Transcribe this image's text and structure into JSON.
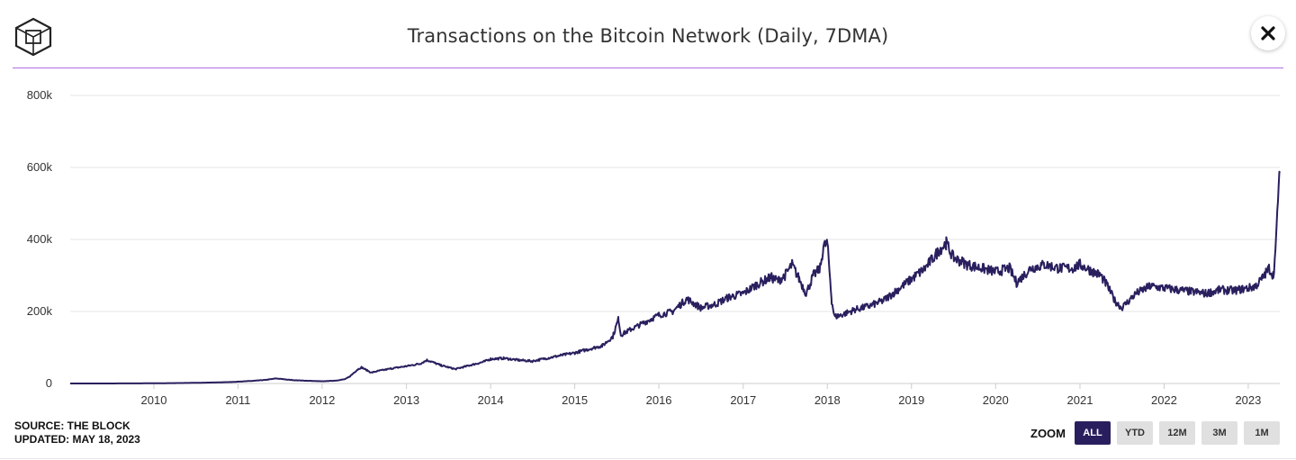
{
  "header": {
    "title": "Transactions on the Bitcoin Network (Daily, 7DMA)",
    "logo_icon": "cube-logo-icon",
    "close_icon": "close-icon"
  },
  "footer": {
    "source": "SOURCE: THE BLOCK",
    "updated": "UPDATED: MAY 18, 2023"
  },
  "zoom": {
    "label": "ZOOM",
    "buttons": [
      {
        "label": "ALL",
        "active": true
      },
      {
        "label": "YTD",
        "active": false
      },
      {
        "label": "12M",
        "active": false
      },
      {
        "label": "3M",
        "active": false
      },
      {
        "label": "1M",
        "active": false
      }
    ]
  },
  "colors": {
    "line": "#2a1f5e",
    "accent_rule": "#b36fe0",
    "grid": "#e6e6e6",
    "active_button": "#2a1f5e"
  },
  "chart_data": {
    "type": "line",
    "title": "Transactions on the Bitcoin Network (Daily, 7DMA)",
    "xlabel": "",
    "ylabel": "",
    "x_tick_labels": [
      "2010",
      "2011",
      "2012",
      "2013",
      "2014",
      "2015",
      "2016",
      "2017",
      "2018",
      "2019",
      "2020",
      "2021",
      "2022",
      "2023"
    ],
    "y_tick_values": [
      0,
      200000,
      400000,
      600000,
      800000
    ],
    "y_tick_labels": [
      "0",
      "200k",
      "400k",
      "600k",
      "800k"
    ],
    "ylim": [
      0,
      800000
    ],
    "xlim": [
      "2009-01-03",
      "2023-05-18"
    ],
    "grid": true,
    "legend": "none",
    "series": [
      {
        "x": [
          "2009-01-03",
          "2009-06-01",
          "2010-01-01",
          "2010-06-01",
          "2010-09-01",
          "2010-12-01",
          "2011-01-01",
          "2011-03-01",
          "2011-05-01",
          "2011-06-15",
          "2011-09-01",
          "2012-01-01",
          "2012-03-01",
          "2012-04-10",
          "2012-05-01",
          "2012-06-01",
          "2012-06-20",
          "2012-08-01",
          "2012-09-01",
          "2012-11-01",
          "2013-01-01",
          "2013-03-01",
          "2013-04-01",
          "2013-06-01",
          "2013-08-01",
          "2013-10-01",
          "2013-12-01",
          "2014-01-01",
          "2014-03-01",
          "2014-05-01",
          "2014-07-01",
          "2014-09-01",
          "2014-11-01",
          "2015-01-01",
          "2015-03-01",
          "2015-05-01",
          "2015-06-15",
          "2015-07-10",
          "2015-07-20",
          "2015-09-01",
          "2015-11-01",
          "2016-01-01",
          "2016-03-01",
          "2016-05-01",
          "2016-07-01",
          "2016-09-01",
          "2016-11-01",
          "2017-01-01",
          "2017-03-01",
          "2017-05-01",
          "2017-06-01",
          "2017-07-01",
          "2017-08-01",
          "2017-09-01",
          "2017-10-01",
          "2017-11-01",
          "2017-12-01",
          "2017-12-15",
          "2018-01-01",
          "2018-01-20",
          "2018-02-01",
          "2018-03-01",
          "2018-05-01",
          "2018-07-01",
          "2018-09-01",
          "2018-11-01",
          "2019-01-01",
          "2019-03-01",
          "2019-05-01",
          "2019-06-01",
          "2019-07-01",
          "2019-09-01",
          "2019-11-01",
          "2020-01-01",
          "2020-03-01",
          "2020-04-01",
          "2020-06-01",
          "2020-08-01",
          "2020-10-01",
          "2020-12-01",
          "2021-01-01",
          "2021-03-01",
          "2021-04-01",
          "2021-05-01",
          "2021-06-01",
          "2021-07-01",
          "2021-09-01",
          "2021-11-01",
          "2022-01-01",
          "2022-03-01",
          "2022-05-01",
          "2022-07-01",
          "2022-09-01",
          "2022-11-01",
          "2023-01-01",
          "2023-02-01",
          "2023-03-01",
          "2023-04-01",
          "2023-04-20",
          "2023-05-01",
          "2023-05-10",
          "2023-05-18"
        ],
        "y": [
          0,
          0,
          500,
          1500,
          2500,
          4000,
          5000,
          7000,
          10000,
          14000,
          9000,
          6000,
          8000,
          12000,
          20000,
          38000,
          45000,
          30000,
          35000,
          42000,
          48000,
          55000,
          65000,
          50000,
          40000,
          50000,
          60000,
          68000,
          70000,
          65000,
          62000,
          70000,
          78000,
          85000,
          95000,
          105000,
          130000,
          180000,
          135000,
          150000,
          170000,
          190000,
          200000,
          235000,
          210000,
          220000,
          240000,
          250000,
          275000,
          295000,
          285000,
          300000,
          330000,
          290000,
          250000,
          300000,
          320000,
          380000,
          390000,
          230000,
          185000,
          190000,
          205000,
          215000,
          230000,
          260000,
          290000,
          320000,
          370000,
          390000,
          350000,
          330000,
          320000,
          310000,
          320000,
          280000,
          320000,
          330000,
          320000,
          320000,
          330000,
          310000,
          300000,
          270000,
          230000,
          210000,
          250000,
          270000,
          265000,
          260000,
          255000,
          250000,
          260000,
          258000,
          265000,
          270000,
          290000,
          320000,
          300000,
          380000,
          520000,
          585000
        ]
      }
    ]
  }
}
